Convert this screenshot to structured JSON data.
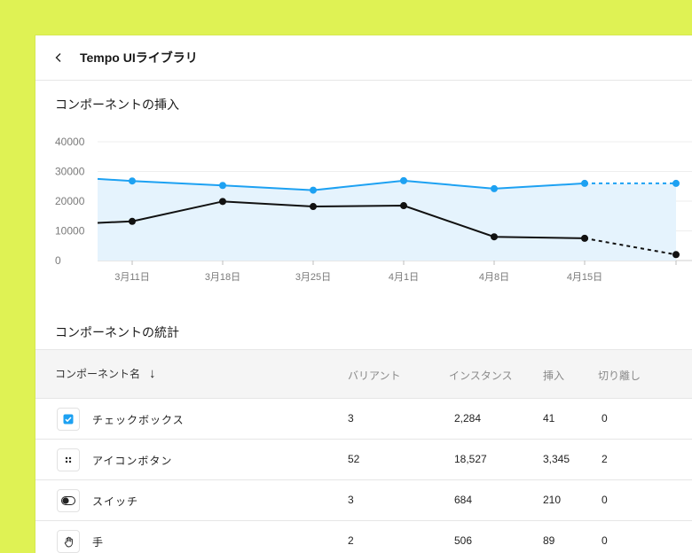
{
  "header": {
    "back_icon": "chevron-left-icon",
    "title": "Tempo UIライブラリ"
  },
  "chart_section": {
    "title": "コンポーネントの挿入"
  },
  "chart_data": {
    "type": "line",
    "title": "コンポーネントの挿入",
    "x": [
      "",
      "3月11日",
      "3月18日",
      "3月25日",
      "4月1日",
      "4月8日",
      "4月15日",
      ""
    ],
    "y_ticks": [
      "40000",
      "30000",
      "20000",
      "10000",
      "0"
    ],
    "ylim": [
      0,
      40000
    ],
    "series": [
      {
        "color": "#1da1f2",
        "values": [
          27500,
          26800,
          25300,
          23700,
          26900,
          24200,
          26000,
          26000
        ],
        "projected_from_index": 6,
        "area_fill": true
      },
      {
        "color": "#111111",
        "values": [
          12700,
          13200,
          19900,
          18200,
          18500,
          8000,
          7500,
          2000
        ],
        "projected_from_index": 6
      }
    ],
    "grid": true
  },
  "stats_section": {
    "title": "コンポーネントの統計"
  },
  "table": {
    "headers": {
      "name": "コンポーネント名",
      "variants": "バリアント",
      "instances": "インスタンス",
      "insertions": "挿入",
      "detachments": "切り離し"
    },
    "sort_icon": "arrow-down-icon",
    "rows": [
      {
        "icon": "checkbox-icon",
        "name": "チェックボックス",
        "variants": "3",
        "instances": "2,284",
        "insertions": "41",
        "detachments": "0"
      },
      {
        "icon": "dots-icon",
        "name": "アイコンボタン",
        "variants": "52",
        "instances": "18,527",
        "insertions": "3,345",
        "detachments": "2"
      },
      {
        "icon": "toggle-icon",
        "name": "スイッチ",
        "variants": "3",
        "instances": "684",
        "insertions": "210",
        "detachments": "0"
      },
      {
        "icon": "hand-icon",
        "name": "手",
        "variants": "2",
        "instances": "506",
        "insertions": "89",
        "detachments": "0"
      }
    ]
  },
  "colors": {
    "background": "#dff254",
    "accent": "#1da1f2",
    "dark_series": "#111111"
  }
}
